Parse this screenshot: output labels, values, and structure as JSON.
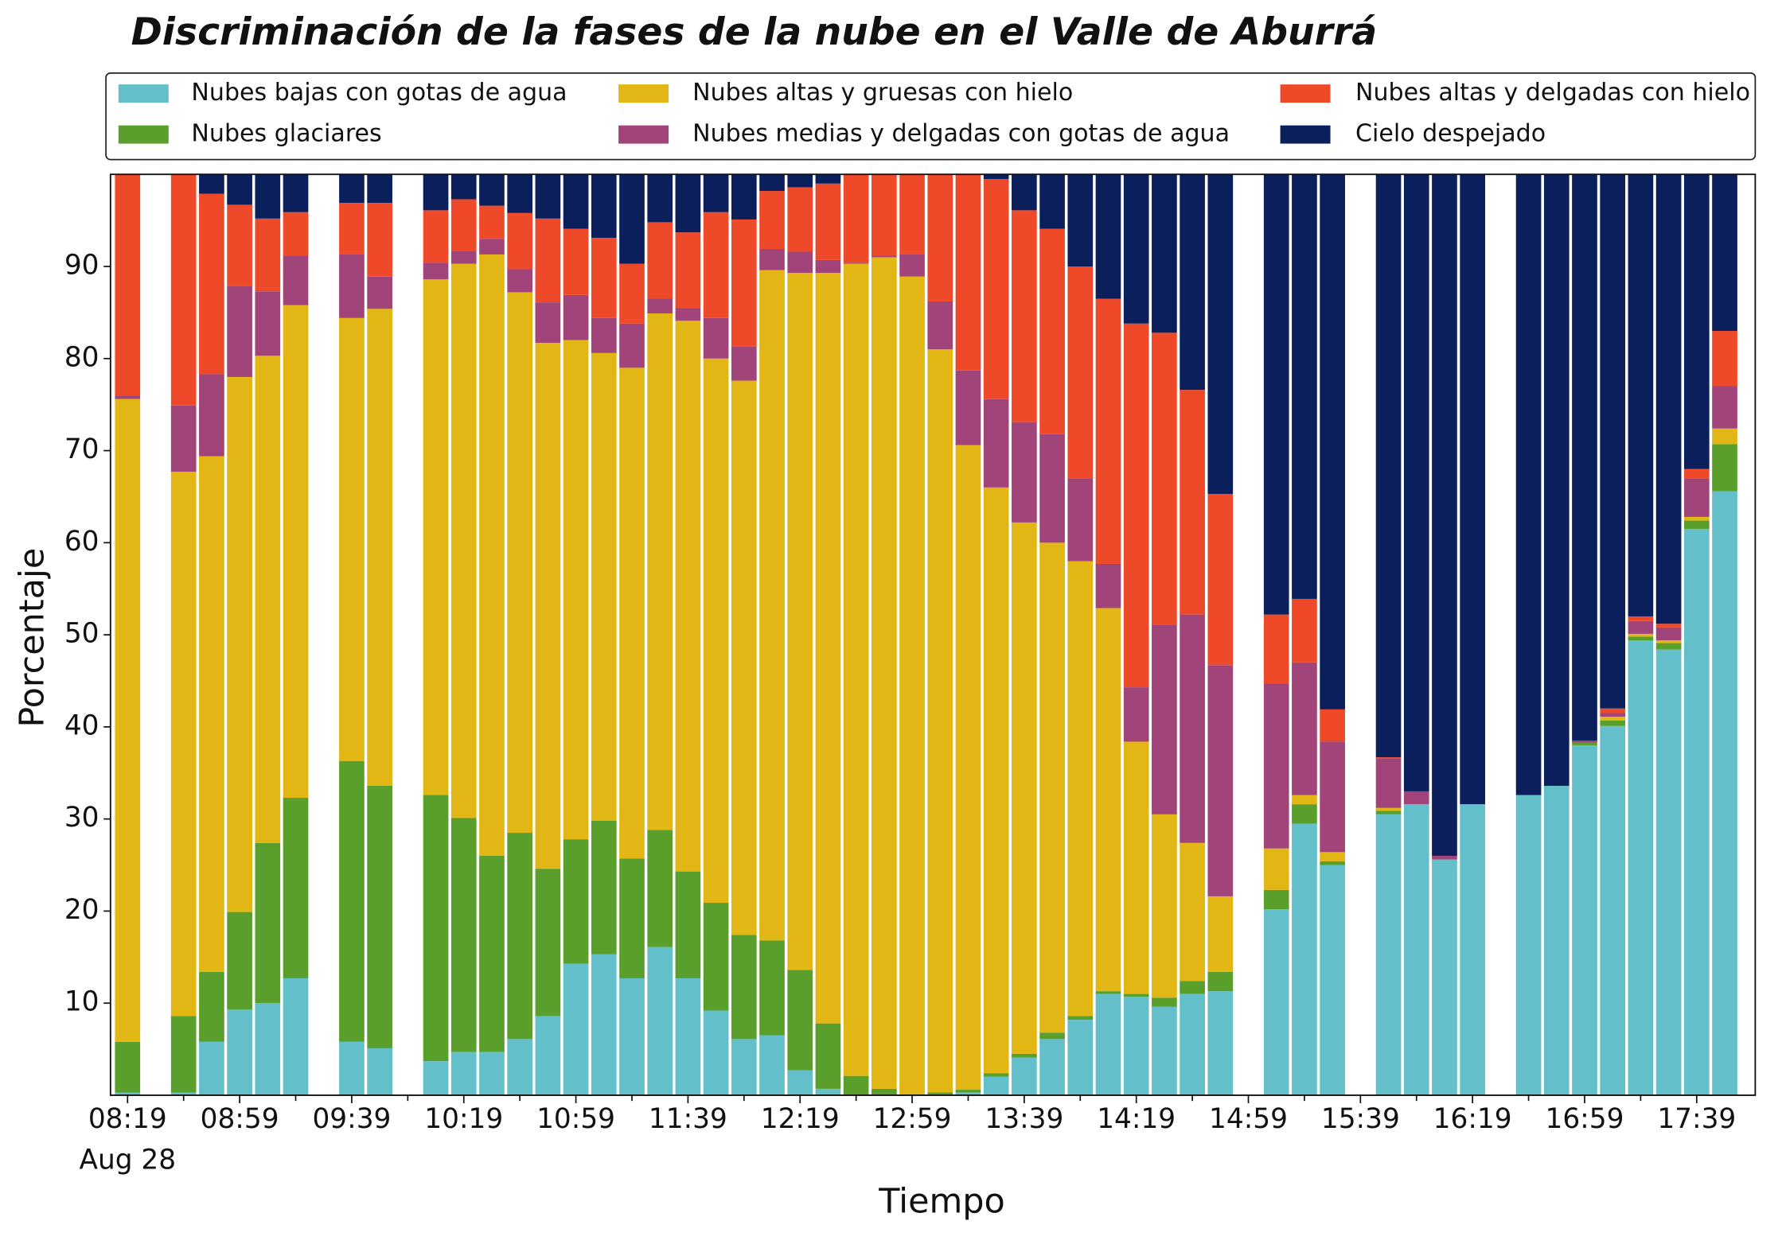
{
  "chart_data": {
    "type": "stacked_bar",
    "title": "Discriminación de la fases de la nube en el Valle de Aburrá",
    "xlabel": "Tiempo",
    "ylabel": "Porcentaje",
    "xdate": "Aug 28",
    "categories": [
      "08:19",
      null,
      null,
      null,
      "08:59",
      null,
      null,
      null,
      "09:39",
      null,
      null,
      null,
      "10:19",
      null,
      null,
      null,
      "10:59",
      null,
      null,
      null,
      "11:39",
      null,
      null,
      null,
      "12:19",
      null,
      null,
      null,
      "12:59",
      null,
      null,
      null,
      "13:39",
      null,
      null,
      null,
      "14:19",
      null,
      null,
      null,
      "14:59",
      null,
      null,
      null,
      "15:39",
      null,
      null,
      null,
      "16:19",
      null,
      null,
      null,
      "16:59",
      null,
      null,
      null,
      "17:39",
      null
    ],
    "ylim": [
      0,
      100
    ],
    "yticks": [
      10,
      20,
      30,
      40,
      50,
      60,
      70,
      80,
      90
    ],
    "legend": "top",
    "series": [
      {
        "name": "Nubes bajas con gotas de agua",
        "color": "#63bfc9",
        "values": [
          0.3,
          null,
          0.3,
          5.8,
          9.3,
          10.0,
          12.7,
          null,
          5.8,
          5.1,
          null,
          3.7,
          4.7,
          4.7,
          6.1,
          8.6,
          14.3,
          15.3,
          12.7,
          16.1,
          12.7,
          9.2,
          6.1,
          6.5,
          2.7,
          0.7,
          0,
          0,
          0,
          0,
          0.3,
          2.0,
          4.1,
          6.1,
          8.2,
          11.0,
          10.7,
          9.6,
          11.0,
          11.3,
          null,
          20.2,
          29.5,
          25.0,
          null,
          30.5,
          31.6,
          25.6,
          31.6,
          null,
          32.6,
          33.6,
          38.0,
          40.1,
          49.4,
          48.4,
          61.5,
          65.6
        ]
      },
      {
        "name": "Nubes glaciares",
        "color": "#5a9e2c",
        "values": [
          5.5,
          null,
          8.3,
          7.6,
          10.6,
          17.4,
          19.6,
          null,
          30.5,
          28.5,
          null,
          28.9,
          25.4,
          21.3,
          22.4,
          16.0,
          13.5,
          14.5,
          13.0,
          12.7,
          11.6,
          11.7,
          11.3,
          10.3,
          10.9,
          7.1,
          2.1,
          0.7,
          0,
          0.3,
          0.3,
          0.4,
          0.4,
          0.7,
          0.4,
          0.3,
          0.3,
          1.0,
          1.4,
          2.1,
          null,
          2.1,
          2.1,
          0.4,
          null,
          0.4,
          0,
          0,
          0,
          null,
          0,
          0,
          0.3,
          0.6,
          0.4,
          0.7,
          0.9,
          5.1
        ]
      },
      {
        "name": "Nubes altas y gruesas con hielo",
        "color": "#e2b614",
        "values": [
          69.8,
          null,
          59.1,
          56.0,
          58.1,
          52.9,
          53.5,
          null,
          48.1,
          51.8,
          null,
          56.0,
          60.2,
          65.3,
          58.7,
          57.1,
          54.2,
          50.8,
          53.3,
          56.1,
          59.8,
          59.1,
          60.2,
          72.8,
          75.7,
          81.5,
          88.2,
          90.3,
          88.9,
          80.7,
          70.0,
          63.6,
          57.7,
          53.2,
          49.4,
          41.6,
          27.4,
          19.9,
          15.0,
          8.2,
          null,
          4.5,
          1.0,
          1.0,
          null,
          0.3,
          0,
          0,
          0,
          null,
          0,
          0,
          0,
          0.4,
          0.3,
          0.3,
          0.4,
          1.7
        ]
      },
      {
        "name": "Nubes medias y delgadas con gotas de agua",
        "color": "#a0447a",
        "values": [
          0.4,
          null,
          7.2,
          8.9,
          9.9,
          7.0,
          5.4,
          null,
          6.9,
          3.5,
          null,
          1.8,
          1.4,
          1.7,
          2.5,
          4.4,
          4.9,
          3.8,
          4.8,
          1.6,
          1.4,
          4.4,
          3.7,
          2.3,
          2.3,
          1.4,
          0.1,
          0.2,
          2.4,
          5.2,
          8.1,
          9.6,
          10.9,
          11.8,
          9.0,
          4.8,
          5.9,
          20.6,
          24.8,
          25.1,
          null,
          17.9,
          14.4,
          12.0,
          null,
          5.4,
          1.4,
          0.4,
          0,
          null,
          0,
          0,
          0.2,
          0.4,
          1.4,
          1.4,
          4.2,
          4.6
        ]
      },
      {
        "name": "Nubes altas y delgadas con hielo",
        "color": "#ee4a2a",
        "values": [
          24.0,
          null,
          25.1,
          19.6,
          8.8,
          7.9,
          4.7,
          null,
          5.6,
          8.0,
          null,
          5.7,
          5.6,
          3.6,
          6.1,
          9.1,
          7.2,
          8.7,
          6.5,
          8.3,
          8.2,
          11.5,
          13.8,
          6.3,
          7.0,
          8.3,
          9.6,
          8.8,
          8.7,
          13.8,
          21.3,
          23.9,
          23.0,
          22.3,
          23.0,
          28.8,
          39.5,
          31.7,
          24.4,
          18.6,
          null,
          7.5,
          6.9,
          3.5,
          null,
          0.1,
          0,
          0,
          0,
          null,
          0,
          0,
          0,
          0.5,
          0.5,
          0.4,
          1.0,
          6.0
        ]
      },
      {
        "name": "Cielo despejado",
        "color": "#0b1f5c",
        "values": [
          0,
          null,
          0,
          2.1,
          3.3,
          4.8,
          4.1,
          null,
          3.1,
          3.1,
          null,
          3.9,
          2.7,
          3.4,
          4.2,
          4.8,
          5.9,
          6.9,
          9.7,
          5.2,
          6.3,
          4.1,
          4.9,
          1.8,
          1.4,
          1.0,
          0,
          0,
          0,
          0,
          0,
          0.5,
          3.9,
          5.9,
          10.0,
          13.5,
          16.2,
          17.2,
          23.4,
          34.7,
          null,
          47.8,
          46.1,
          58.1,
          null,
          63.3,
          67.0,
          74.0,
          68.4,
          null,
          67.4,
          66.4,
          61.5,
          58.0,
          48.0,
          48.8,
          32.0,
          17.0
        ]
      }
    ]
  }
}
